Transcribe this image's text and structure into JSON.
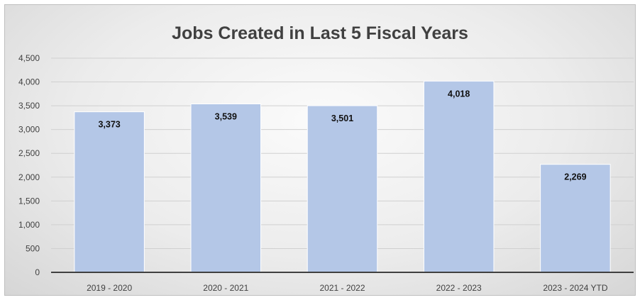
{
  "chart_data": {
    "type": "bar",
    "title": "Jobs Created in Last 5 Fiscal Years",
    "categories": [
      "2019 - 2020",
      "2020 - 2021",
      "2021 - 2022",
      "2022 - 2023",
      "2023 - 2024 YTD"
    ],
    "values": [
      3373,
      3539,
      3501,
      4018,
      2269
    ],
    "value_labels": [
      "3,373",
      "3,539",
      "3,501",
      "4,018",
      "2,269"
    ],
    "yticks": [
      0,
      500,
      1000,
      1500,
      2000,
      2500,
      3000,
      3500,
      4000,
      4500
    ],
    "ytick_labels": [
      "0",
      "500",
      "1,000",
      "1,500",
      "2,000",
      "2,500",
      "3,000",
      "3,500",
      "4,000",
      "4,500"
    ],
    "ylim": [
      0,
      4500
    ],
    "grid": true,
    "legend": "none",
    "bar_color": "#b4c7e7"
  }
}
